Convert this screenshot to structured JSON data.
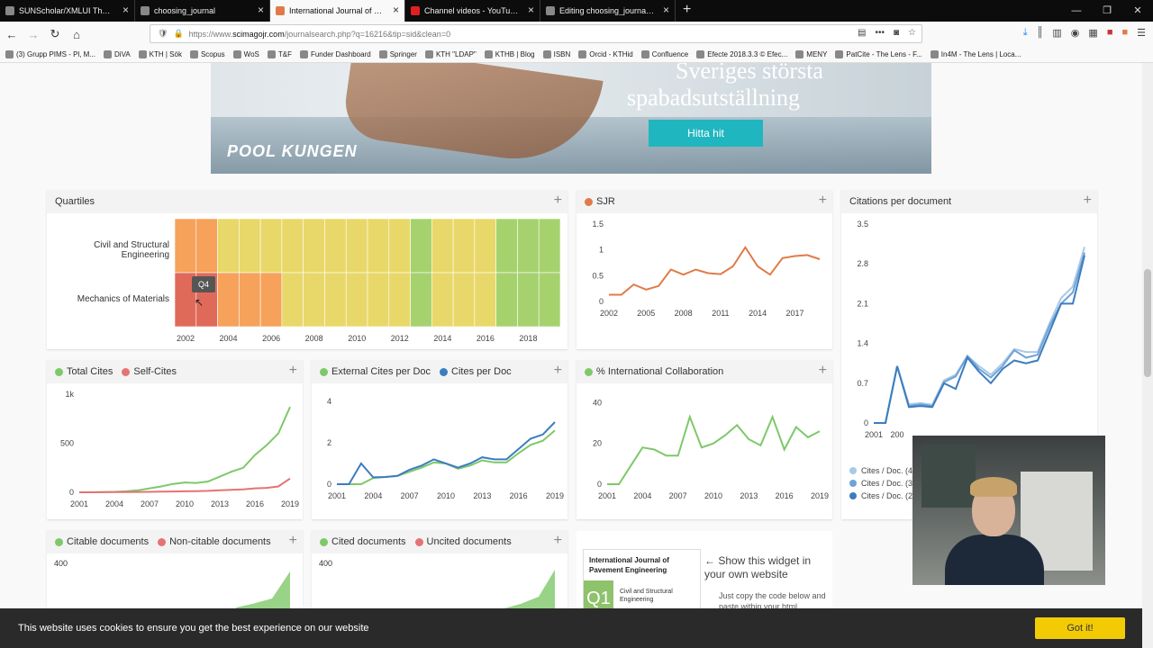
{
  "browser": {
    "tabs": [
      {
        "label": "SUNScholar/XMLUI Theme/M1/Inc",
        "active": false,
        "icon": "globe-icon"
      },
      {
        "label": "choosing_journal",
        "active": false,
        "icon": "globe-icon"
      },
      {
        "label": "International Journal of Pavem",
        "active": true,
        "icon": "scimago-icon"
      },
      {
        "label": "Channel videos - YouTube Stu",
        "active": false,
        "icon": "youtube-icon"
      },
      {
        "label": "Editing choosing_journal/inde",
        "active": false,
        "icon": "globe-icon"
      }
    ],
    "url_prefix": "https://www.",
    "url_domain": "scimagojr.com",
    "url_path": "/journalsearch.php?q=16216&tip=sid&clean=0",
    "bookmarks": [
      "(3) Grupp PIMS - Pl, M...",
      "DiVA",
      "KTH | Sök",
      "Scopus",
      "WoS",
      "T&F",
      "Funder Dashboard",
      "Springer",
      "KTH \"LDAP\"",
      "KTHB | Blog",
      "ISBN",
      "Orcid - KTHid",
      "Confluence",
      "Efecte 2018.3.3 © Efec...",
      "MENY",
      "PatCite - The Lens - F...",
      "In4M - The Lens | Loca..."
    ]
  },
  "ad": {
    "line1": "Sveriges största",
    "line2": "spabadsutställning",
    "cta": "Hitta hit",
    "brand": "POOL KUNGEN"
  },
  "cards": {
    "quartiles": {
      "title": "Quartiles",
      "cat1": "Civil and Structural Engineering",
      "cat2": "Mechanics of Materials",
      "tooltip": "Q4",
      "years": [
        "2002",
        "2004",
        "2006",
        "2008",
        "2010",
        "2012",
        "2014",
        "2016",
        "2018"
      ]
    },
    "sjr": {
      "title": "SJR",
      "yticks": [
        "1.5",
        "1",
        "0.5",
        "0"
      ],
      "xticks": [
        "2002",
        "2005",
        "2008",
        "2011",
        "2014",
        "2017"
      ]
    },
    "cpd": {
      "title": "Citations per document",
      "yticks": [
        "3.5",
        "2.8",
        "2.1",
        "1.4",
        "0.7",
        "0"
      ],
      "xticks": [
        "2001",
        "200"
      ],
      "legend": [
        "Cites / Doc. (4",
        "Cites / Doc. (3",
        "Cites / Doc. (2"
      ]
    },
    "total_cites": {
      "label1": "Total Cites",
      "label2": "Self-Cites",
      "yticks": [
        "1k",
        "500",
        "0"
      ],
      "xticks": [
        "2001",
        "2004",
        "2007",
        "2010",
        "2013",
        "2016",
        "2019"
      ]
    },
    "ext_cites": {
      "label1": "External Cites per Doc",
      "label2": "Cites per Doc",
      "yticks": [
        "4",
        "2",
        "0"
      ],
      "xticks": [
        "2001",
        "2004",
        "2007",
        "2010",
        "2013",
        "2016",
        "2019"
      ]
    },
    "intl": {
      "label1": "% International Collaboration",
      "yticks": [
        "40",
        "20",
        "0"
      ],
      "xticks": [
        "2001",
        "2004",
        "2007",
        "2010",
        "2013",
        "2016",
        "2019"
      ]
    },
    "citable": {
      "label1": "Citable documents",
      "label2": "Non-citable documents",
      "ytick": "400"
    },
    "cited": {
      "label1": "Cited documents",
      "label2": "Uncited documents",
      "ytick": "400"
    },
    "widget": {
      "journal": "International Journal of Pavement Engineering",
      "quartile": "Q1",
      "category": "Civil and Structural Engineering",
      "show": "← Show this widget in your own website",
      "copy": "Just copy the code below and paste within your html"
    }
  },
  "cookie": {
    "text": "This website uses cookies to ensure you get the best experience on our website",
    "button": "Got it!"
  },
  "colors": {
    "green": "#7ec86a",
    "red": "#e57373",
    "orange": "#e07b48",
    "blue": "#3c7dbf",
    "lightblue": "#a9c9e8",
    "midblue": "#6fa3d6"
  },
  "chart_data": [
    {
      "type": "heatmap",
      "title": "Quartiles",
      "categories": [
        "Civil and Structural Engineering",
        "Mechanics of Materials"
      ],
      "x": [
        2002,
        2003,
        2004,
        2005,
        2006,
        2007,
        2008,
        2009,
        2010,
        2011,
        2012,
        2013,
        2014,
        2015,
        2016,
        2017,
        2018,
        2019
      ],
      "series": [
        {
          "name": "Civil and Structural Engineering",
          "values": [
            "Q3",
            "Q3",
            "Q2",
            "Q2",
            "Q2",
            "Q2",
            "Q2",
            "Q2",
            "Q2",
            "Q2",
            "Q2",
            "Q1",
            "Q2",
            "Q2",
            "Q2",
            "Q1",
            "Q1",
            "Q1"
          ]
        },
        {
          "name": "Mechanics of Materials",
          "values": [
            "Q4",
            "Q4",
            "Q3",
            "Q3",
            "Q3",
            "Q2",
            "Q2",
            "Q2",
            "Q2",
            "Q2",
            "Q2",
            "Q1",
            "Q2",
            "Q2",
            "Q2",
            "Q1",
            "Q1",
            "Q1"
          ]
        }
      ]
    },
    {
      "type": "line",
      "title": "SJR",
      "x": [
        2002,
        2003,
        2004,
        2005,
        2006,
        2007,
        2008,
        2009,
        2010,
        2011,
        2012,
        2013,
        2014,
        2015,
        2016,
        2017,
        2018,
        2019
      ],
      "values": [
        0.13,
        0.13,
        0.33,
        0.23,
        0.3,
        0.62,
        0.52,
        0.62,
        0.55,
        0.53,
        0.68,
        1.05,
        0.68,
        0.52,
        0.84,
        0.88,
        0.9,
        0.82
      ],
      "ylim": [
        0,
        1.5
      ]
    },
    {
      "type": "line",
      "title": "Citations per document",
      "x": [
        2001,
        2002,
        2003,
        2004,
        2005,
        2006,
        2007,
        2008,
        2009,
        2010,
        2011,
        2012,
        2013,
        2014,
        2015,
        2016,
        2017,
        2018,
        2019
      ],
      "series": [
        {
          "name": "Cites / Doc. (4",
          "values": [
            0,
            0,
            1.0,
            0.33,
            0.35,
            0.32,
            0.75,
            0.85,
            1.18,
            1.0,
            0.85,
            1.05,
            1.3,
            1.25,
            1.25,
            1.75,
            2.2,
            2.4,
            3.1
          ]
        },
        {
          "name": "Cites / Doc. (3",
          "values": [
            0,
            0,
            1.0,
            0.3,
            0.33,
            0.3,
            0.72,
            0.82,
            1.18,
            0.95,
            0.8,
            1.0,
            1.28,
            1.15,
            1.2,
            1.7,
            2.1,
            2.3,
            3.0
          ]
        },
        {
          "name": "Cites / Doc. (2",
          "values": [
            0,
            0,
            1.0,
            0.28,
            0.3,
            0.28,
            0.7,
            0.6,
            1.15,
            0.9,
            0.7,
            0.95,
            1.1,
            1.05,
            1.1,
            1.6,
            2.1,
            2.1,
            2.95
          ]
        }
      ],
      "ylim": [
        0,
        3.5
      ]
    },
    {
      "type": "line",
      "x": [
        2001,
        2002,
        2003,
        2004,
        2005,
        2006,
        2007,
        2008,
        2009,
        2010,
        2011,
        2012,
        2013,
        2014,
        2015,
        2016,
        2017,
        2018,
        2019
      ],
      "series": [
        {
          "name": "Total Cites",
          "values": [
            0,
            0,
            3,
            5,
            10,
            20,
            40,
            60,
            85,
            100,
            95,
            110,
            160,
            210,
            250,
            380,
            480,
            600,
            870
          ]
        },
        {
          "name": "Self-Cites",
          "values": [
            0,
            0,
            1,
            2,
            3,
            4,
            5,
            6,
            8,
            10,
            12,
            15,
            20,
            25,
            30,
            40,
            45,
            60,
            140
          ]
        }
      ],
      "ylim": [
        0,
        1000
      ]
    },
    {
      "type": "line",
      "x": [
        2001,
        2002,
        2003,
        2004,
        2005,
        2006,
        2007,
        2008,
        2009,
        2010,
        2011,
        2012,
        2013,
        2014,
        2015,
        2016,
        2017,
        2018,
        2019
      ],
      "series": [
        {
          "name": "External Cites per Doc",
          "values": [
            0,
            0,
            0,
            0.3,
            0.35,
            0.4,
            0.6,
            0.8,
            1.05,
            1.0,
            0.75,
            0.9,
            1.15,
            1.05,
            1.05,
            1.5,
            1.9,
            2.1,
            2.6
          ]
        },
        {
          "name": "Cites per Doc",
          "values": [
            0,
            0,
            1.0,
            0.33,
            0.35,
            0.4,
            0.7,
            0.9,
            1.2,
            1.0,
            0.8,
            1.0,
            1.3,
            1.2,
            1.2,
            1.7,
            2.2,
            2.4,
            3.0
          ]
        }
      ],
      "ylim": [
        0,
        4
      ]
    },
    {
      "type": "line",
      "x": [
        2001,
        2002,
        2003,
        2004,
        2005,
        2006,
        2007,
        2008,
        2009,
        2010,
        2011,
        2012,
        2013,
        2014,
        2015,
        2016,
        2017,
        2018,
        2019
      ],
      "series": [
        {
          "name": "% International Collaboration",
          "values": [
            0,
            0,
            9,
            18,
            17,
            14,
            14,
            33,
            18,
            20,
            24,
            29,
            22,
            19,
            33,
            17,
            28,
            23,
            26
          ]
        }
      ],
      "ylim": [
        0,
        45
      ]
    }
  ]
}
